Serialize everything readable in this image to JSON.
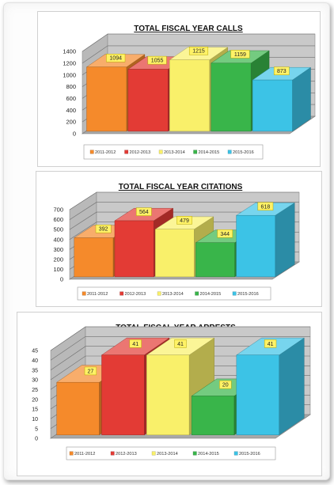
{
  "colors": {
    "2011-2012": "#f58a2b",
    "2012-2013": "#e33b35",
    "2013-2014": "#f9f06a",
    "2014-2015": "#39b54a",
    "2015-2016": "#3cc3e6",
    "wall": "#c9c9c9",
    "floor": "#a8a8a8",
    "label_bg": "#fff266"
  },
  "chart_data": [
    {
      "type": "bar",
      "title": "TOTAL FISCAL YEAR CALLS",
      "categories": [
        "2011-2012",
        "2012-2013",
        "2013-2014",
        "2014-2015",
        "2015-2016"
      ],
      "values": [
        1094,
        1055,
        1215,
        1159,
        873
      ],
      "data_labels": [
        "1094",
        "1055",
        "1215",
        "1159",
        "873"
      ],
      "ylim": [
        0,
        1400
      ],
      "yticks": [
        0,
        200,
        400,
        600,
        800,
        1000,
        1200,
        1400
      ],
      "style": "3d",
      "grid": true,
      "legend": "bottom",
      "xlabel": "",
      "ylabel": ""
    },
    {
      "type": "bar",
      "title": "TOTAL FISCAL YEAR CITATIONS",
      "categories": [
        "2011-2012",
        "2012-2013",
        "2013-2014",
        "2014-2015",
        "2015-2016"
      ],
      "values": [
        392,
        564,
        479,
        344,
        618
      ],
      "data_labels": [
        "392",
        "564",
        "479",
        "344",
        "618"
      ],
      "ylim": [
        0,
        700
      ],
      "yticks": [
        0,
        100,
        200,
        300,
        400,
        500,
        600,
        700
      ],
      "style": "3d",
      "grid": true,
      "legend": "bottom",
      "xlabel": "",
      "ylabel": ""
    },
    {
      "type": "bar",
      "title": "TOTAL FISCAL YEAR ARRESTS",
      "categories": [
        "2011-2012",
        "2012-2013",
        "2013-2014",
        "2014-2015",
        "2015-2016"
      ],
      "values": [
        27,
        41,
        41,
        20,
        41
      ],
      "data_labels": [
        "27",
        "41",
        "41",
        "20",
        "41"
      ],
      "ylim": [
        0,
        45
      ],
      "yticks": [
        0,
        5,
        10,
        15,
        20,
        25,
        30,
        35,
        40,
        45
      ],
      "style": "3d",
      "grid": true,
      "legend": "bottom",
      "xlabel": "",
      "ylabel": ""
    }
  ]
}
